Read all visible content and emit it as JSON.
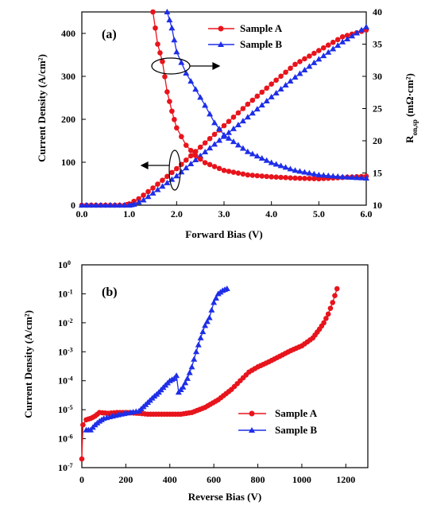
{
  "colors": {
    "sample_a": "#e8141c",
    "sample_b": "#1e2ee8"
  },
  "chart_data": [
    {
      "type": "line",
      "panel_label": "(a)",
      "xlabel": "Forward Bias (V)",
      "ylabel": "Current Density (A/cm²)",
      "y2label_main": "R",
      "y2label_sub": "on,sp",
      "y2label_rest": " (mΩ·cm²)",
      "xlim": [
        0,
        6
      ],
      "ylim": [
        0,
        450
      ],
      "y2lim": [
        10,
        40
      ],
      "xticks": [
        "0.0",
        "1.0",
        "2.0",
        "3.0",
        "4.0",
        "5.0",
        "6.0"
      ],
      "yticks": [
        "0",
        "100",
        "200",
        "300",
        "400"
      ],
      "y2ticks": [
        "10",
        "15",
        "20",
        "25",
        "30",
        "35",
        "40"
      ],
      "legend": [
        "Sample A",
        "Sample B"
      ],
      "legend_position": "top-right",
      "series": [
        {
          "name": "Sample A",
          "axis": "left",
          "x": [
            0,
            0.2,
            0.6,
            0.9,
            1.0,
            1.2,
            1.5,
            2.0,
            2.5,
            3.0,
            3.5,
            4.0,
            4.5,
            5.0,
            5.5,
            6.0
          ],
          "y": [
            0,
            0,
            0,
            0,
            3,
            15,
            40,
            85,
            135,
            185,
            235,
            282,
            328,
            360,
            392,
            408
          ]
        },
        {
          "name": "Sample B",
          "axis": "left",
          "x": [
            0,
            0.6,
            1.0,
            1.1,
            1.3,
            1.5,
            2.0,
            2.5,
            3.0,
            3.5,
            4.0,
            4.5,
            5.0,
            5.5,
            6.0
          ],
          "y": [
            0,
            0,
            0,
            2,
            12,
            28,
            68,
            115,
            160,
            205,
            252,
            298,
            340,
            380,
            415
          ]
        },
        {
          "name": "Sample A",
          "axis": "right",
          "x": [
            1.5,
            1.6,
            1.7,
            1.8,
            1.9,
            2.0,
            2.2,
            2.4,
            2.6,
            3.0,
            3.5,
            4.0,
            4.5,
            5.0,
            5.5,
            6.0
          ],
          "y": [
            40,
            35.0,
            32.3,
            27.6,
            24.6,
            22.0,
            19.3,
            17.7,
            16.6,
            15.4,
            14.7,
            14.4,
            14.2,
            14.1,
            14.3,
            14.5
          ]
        },
        {
          "name": "Sample B",
          "axis": "right",
          "x": [
            1.8,
            1.9,
            2.0,
            2.2,
            2.4,
            2.6,
            2.8,
            3.0,
            3.5,
            4.0,
            4.5,
            5.0,
            5.5,
            6.0
          ],
          "y": [
            40,
            37.5,
            33.8,
            30.5,
            28.0,
            25.5,
            22.8,
            20.9,
            18.3,
            16.6,
            15.4,
            14.7,
            14.4,
            14.2
          ]
        }
      ]
    },
    {
      "type": "scatter",
      "panel_label": "(b)",
      "xlabel": "Reverse Bias (V)",
      "ylabel": "Current Density (A/cm²)",
      "yscale": "log",
      "xlim": [
        0,
        1300
      ],
      "ylim_exp": [
        -7,
        0
      ],
      "xticks": [
        "0",
        "200",
        "400",
        "600",
        "800",
        "1000",
        "1200"
      ],
      "yticks_exp": [
        "0",
        "-1",
        "-2",
        "-3",
        "-4",
        "-5",
        "-6",
        "-7"
      ],
      "ytick_base": "10",
      "legend": [
        "Sample A",
        "Sample B"
      ],
      "legend_position": "bottom-right",
      "series": [
        {
          "name": "Sample A",
          "x": [
            0,
            5,
            20,
            40,
            60,
            80,
            120,
            160,
            200,
            260,
            300,
            350,
            400,
            450,
            500,
            560,
            620,
            680,
            720,
            760,
            800,
            850,
            900,
            950,
            1000,
            1050,
            1080,
            1100,
            1120,
            1140,
            1160
          ],
          "y": [
            2e-07,
            3e-06,
            4.5e-06,
            5e-06,
            6e-06,
            8e-06,
            7.5e-06,
            8e-06,
            8e-06,
            7.5e-06,
            7e-06,
            7e-06,
            7e-06,
            7e-06,
            8e-06,
            1.2e-05,
            2.2e-05,
            5e-05,
            0.0001,
            0.0002,
            0.0003,
            0.00045,
            0.0007,
            0.0011,
            0.0016,
            0.003,
            0.006,
            0.01,
            0.02,
            0.05,
            0.15
          ]
        },
        {
          "name": "Sample B",
          "x": [
            20,
            40,
            60,
            80,
            100,
            140,
            180,
            220,
            260,
            290,
            320,
            350,
            380,
            400,
            420,
            430,
            440,
            460,
            480,
            500,
            520,
            540,
            560,
            580,
            600,
            620,
            640,
            660
          ],
          "y": [
            2e-06,
            2e-06,
            3e-06,
            4e-06,
            5e-06,
            6e-06,
            7e-06,
            8e-06,
            9e-06,
            1.5e-05,
            2.5e-05,
            4e-05,
            7e-05,
            0.0001,
            0.00012,
            0.00015,
            4e-05,
            6e-05,
            0.00012,
            0.0003,
            0.001,
            0.003,
            0.008,
            0.015,
            0.05,
            0.1,
            0.13,
            0.15
          ]
        }
      ]
    }
  ]
}
